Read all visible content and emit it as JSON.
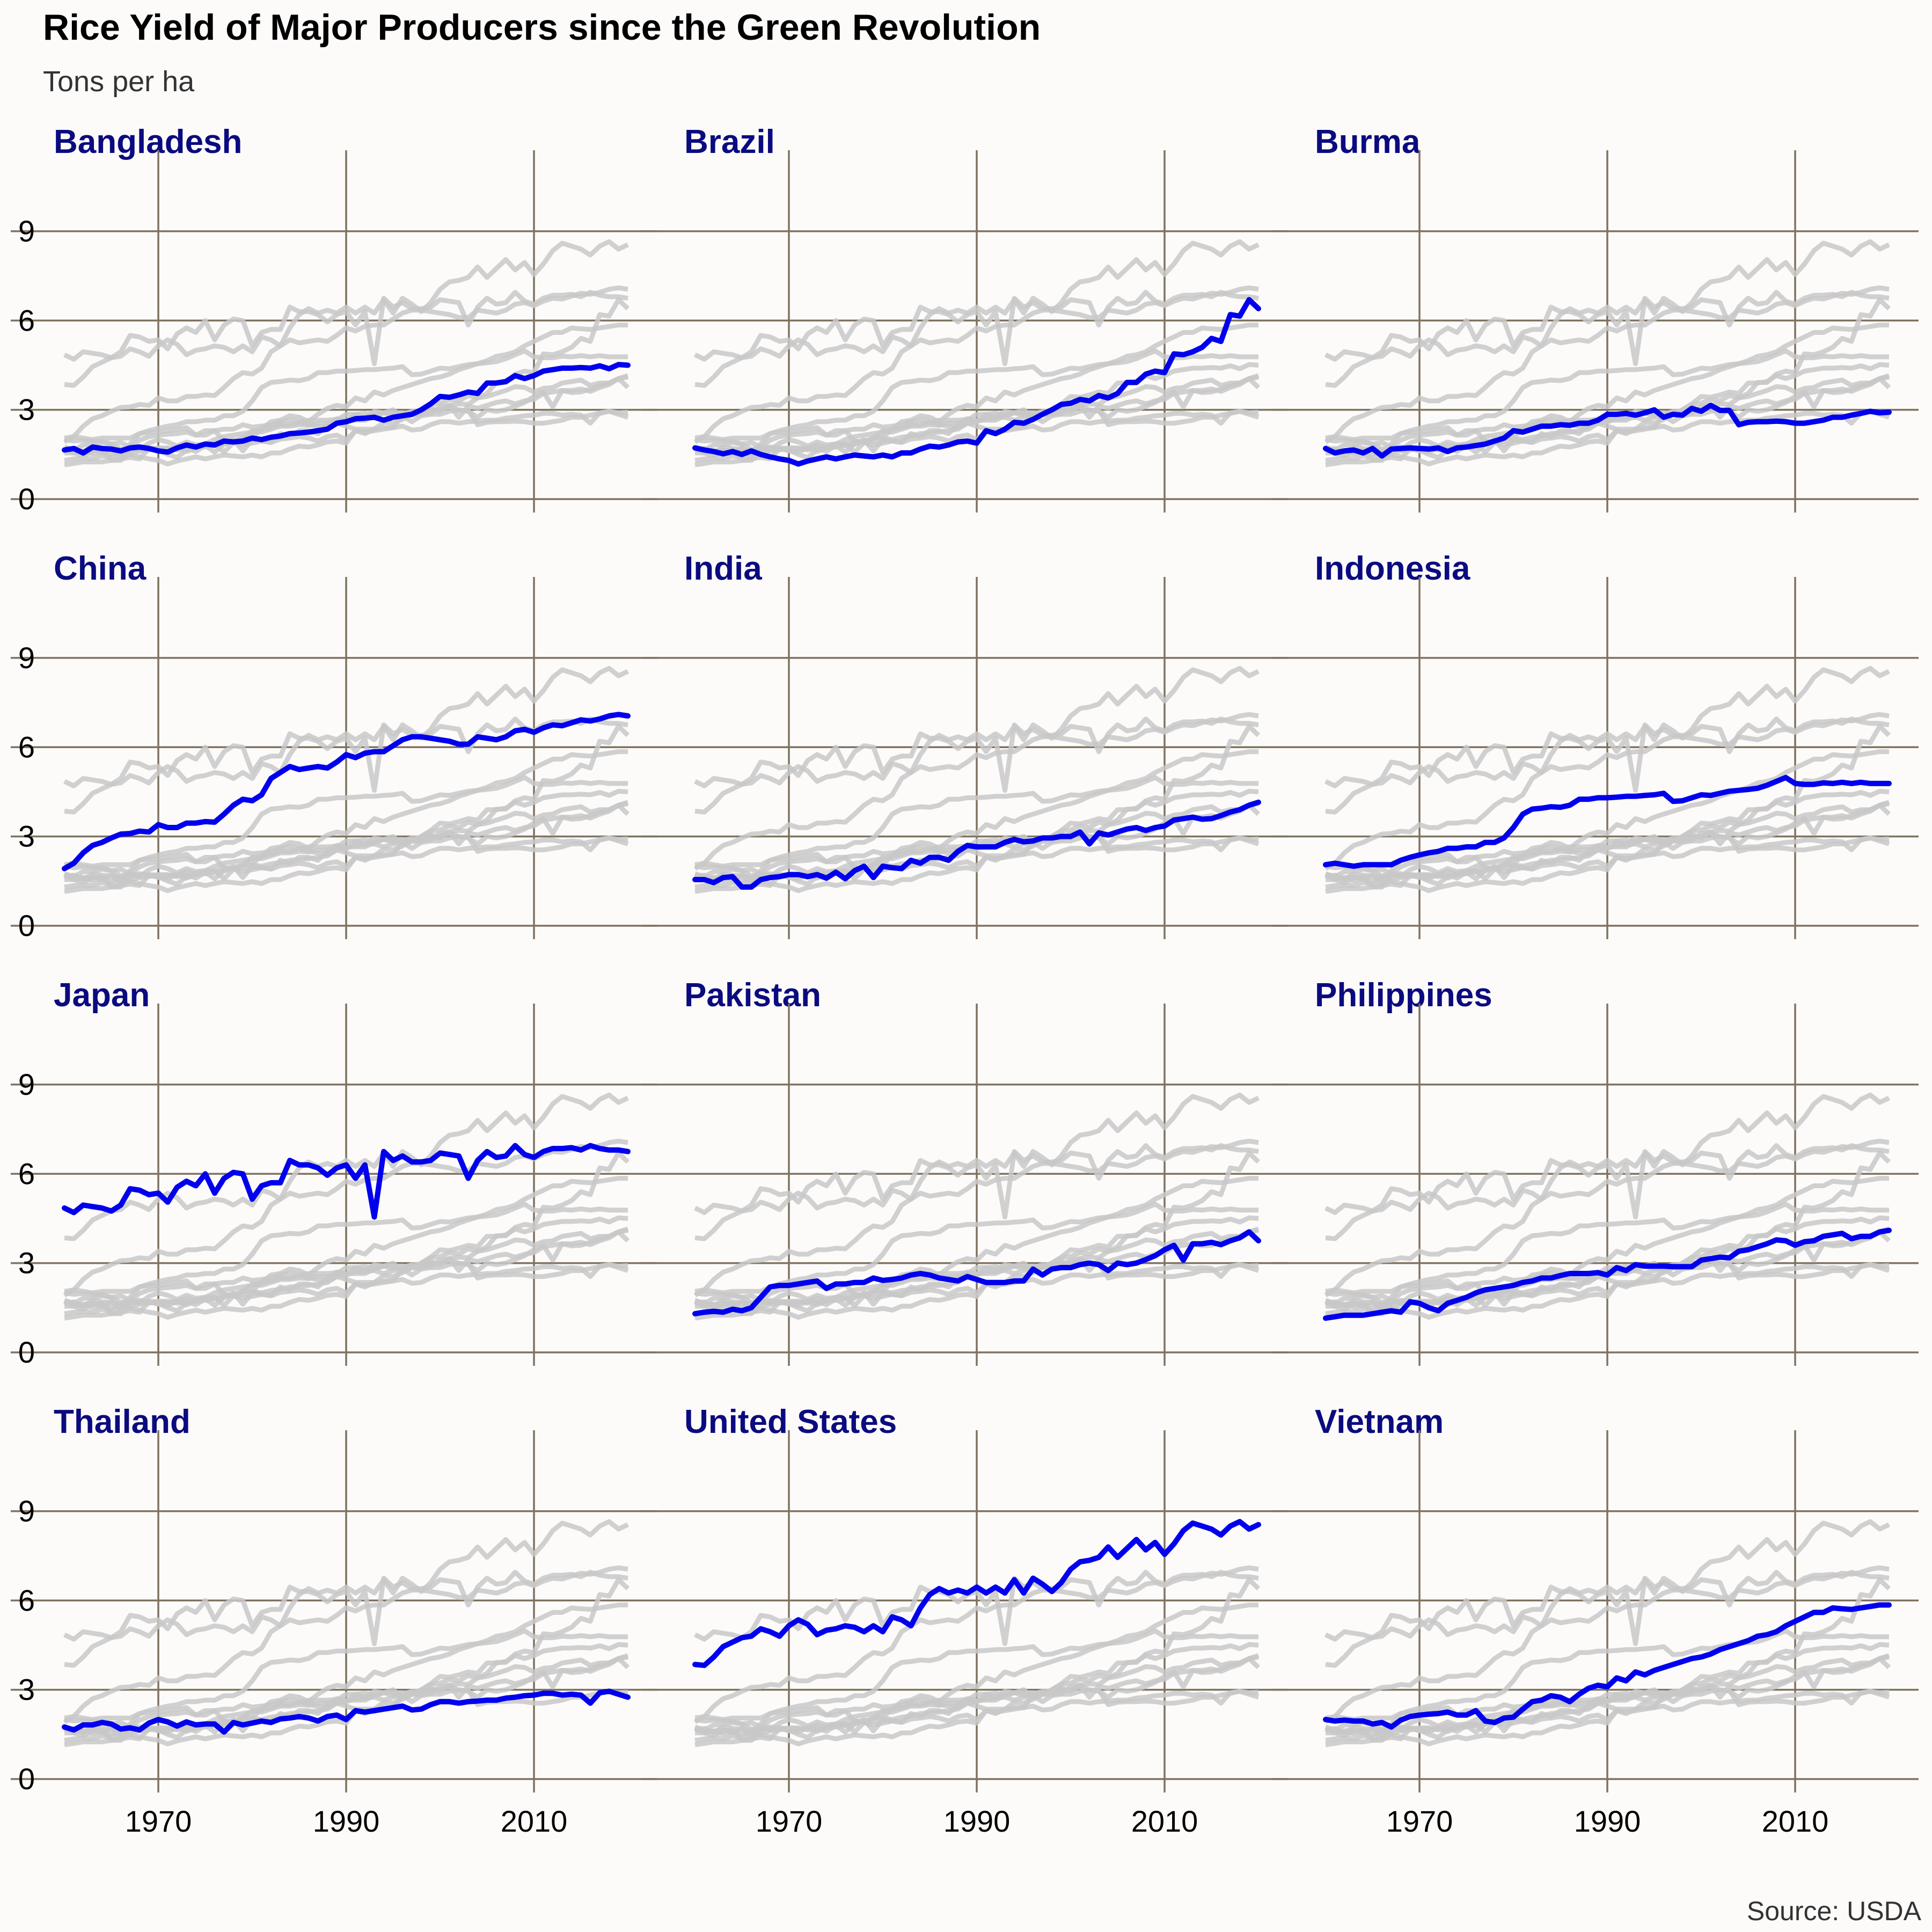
{
  "title": "Rice Yield of Major Producers since the Green Revolution",
  "subtitle": "Tons per ha",
  "caption": "Source: USDA",
  "colors": {
    "highlight": "#0000ee",
    "background_lines": "#c8c8c8",
    "grid": "#7f7360",
    "panel_title": "#0b0b80",
    "background": "#fdfbfa"
  },
  "chart_data": {
    "type": "line",
    "layout": "small multiples, 4 rows x 3 columns",
    "xlim": [
      1960,
      2020
    ],
    "ylim": [
      0,
      11
    ],
    "x_ticks": [
      1970,
      1990,
      2010
    ],
    "y_ticks": [
      0,
      3,
      6,
      9
    ],
    "x_tick_labels": [
      "1970",
      "1990",
      "2010"
    ],
    "y_tick_labels": [
      "0",
      "3",
      "6",
      "9"
    ],
    "grid": true,
    "x": [
      1960,
      1961,
      1962,
      1963,
      1964,
      1965,
      1966,
      1967,
      1968,
      1969,
      1970,
      1971,
      1972,
      1973,
      1974,
      1975,
      1976,
      1977,
      1978,
      1979,
      1980,
      1981,
      1982,
      1983,
      1984,
      1985,
      1986,
      1987,
      1988,
      1989,
      1990,
      1991,
      1992,
      1993,
      1994,
      1995,
      1996,
      1997,
      1998,
      1999,
      2000,
      2001,
      2002,
      2003,
      2004,
      2005,
      2006,
      2007,
      2008,
      2009,
      2010,
      2011,
      2012,
      2013,
      2014,
      2015,
      2016,
      2017,
      2018,
      2019,
      2020
    ],
    "background_series_note": "Every panel repeats all countries' yield series in grey behind the highlighted country (blue).",
    "series": [
      {
        "name": "Bangladesh",
        "values": [
          1.65,
          1.7,
          1.55,
          1.75,
          1.7,
          1.68,
          1.62,
          1.72,
          1.75,
          1.7,
          1.62,
          1.58,
          1.72,
          1.82,
          1.75,
          1.85,
          1.82,
          1.95,
          1.92,
          1.95,
          2.05,
          2.0,
          2.08,
          2.12,
          2.2,
          2.22,
          2.25,
          2.3,
          2.35,
          2.55,
          2.6,
          2.7,
          2.72,
          2.75,
          2.65,
          2.75,
          2.8,
          2.85,
          3.0,
          3.2,
          3.45,
          3.42,
          3.5,
          3.6,
          3.55,
          3.9,
          3.9,
          3.95,
          4.15,
          4.05,
          4.15,
          4.3,
          4.35,
          4.4,
          4.4,
          4.42,
          4.4,
          4.48,
          4.38,
          4.52,
          4.5
        ]
      },
      {
        "name": "Brazil",
        "values": [
          1.72,
          1.65,
          1.6,
          1.52,
          1.6,
          1.5,
          1.62,
          1.5,
          1.42,
          1.35,
          1.3,
          1.18,
          1.28,
          1.35,
          1.42,
          1.35,
          1.42,
          1.48,
          1.45,
          1.42,
          1.48,
          1.42,
          1.55,
          1.55,
          1.68,
          1.78,
          1.75,
          1.82,
          1.92,
          1.95,
          1.88,
          2.3,
          2.2,
          2.35,
          2.58,
          2.55,
          2.68,
          2.85,
          3.0,
          3.18,
          3.22,
          3.35,
          3.3,
          3.48,
          3.4,
          3.55,
          3.92,
          3.92,
          4.2,
          4.3,
          4.25,
          4.88,
          4.85,
          4.95,
          5.1,
          5.4,
          5.3,
          6.2,
          6.15,
          6.7,
          6.4
        ]
      },
      {
        "name": "Burma",
        "values": [
          1.7,
          1.55,
          1.62,
          1.65,
          1.55,
          1.7,
          1.45,
          1.68,
          1.7,
          1.72,
          1.7,
          1.68,
          1.72,
          1.6,
          1.72,
          1.75,
          1.8,
          1.85,
          1.95,
          2.05,
          2.3,
          2.25,
          2.35,
          2.45,
          2.45,
          2.5,
          2.48,
          2.55,
          2.55,
          2.65,
          2.85,
          2.85,
          2.88,
          2.82,
          2.9,
          3.0,
          2.75,
          2.85,
          2.82,
          3.05,
          2.95,
          3.15,
          2.98,
          2.98,
          2.5,
          2.58,
          2.6,
          2.6,
          2.62,
          2.6,
          2.55,
          2.55,
          2.6,
          2.65,
          2.75,
          2.75,
          2.82,
          2.88,
          2.95,
          2.9,
          2.92
        ]
      },
      {
        "name": "China",
        "values": [
          1.92,
          2.1,
          2.45,
          2.7,
          2.8,
          2.95,
          3.08,
          3.1,
          3.18,
          3.15,
          3.4,
          3.3,
          3.3,
          3.45,
          3.45,
          3.5,
          3.48,
          3.75,
          4.05,
          4.25,
          4.2,
          4.4,
          4.95,
          5.15,
          5.35,
          5.25,
          5.3,
          5.35,
          5.3,
          5.5,
          5.75,
          5.65,
          5.8,
          5.85,
          5.85,
          6.05,
          6.25,
          6.35,
          6.35,
          6.3,
          6.25,
          6.2,
          6.1,
          6.1,
          6.35,
          6.3,
          6.25,
          6.35,
          6.55,
          6.6,
          6.5,
          6.65,
          6.75,
          6.72,
          6.82,
          6.92,
          6.88,
          6.95,
          7.05,
          7.1,
          7.05
        ]
      },
      {
        "name": "India",
        "values": [
          1.55,
          1.55,
          1.45,
          1.62,
          1.65,
          1.3,
          1.3,
          1.55,
          1.62,
          1.65,
          1.72,
          1.72,
          1.65,
          1.72,
          1.6,
          1.8,
          1.58,
          1.85,
          2.0,
          1.62,
          2.0,
          1.95,
          1.92,
          2.2,
          2.1,
          2.3,
          2.3,
          2.2,
          2.5,
          2.7,
          2.65,
          2.65,
          2.65,
          2.8,
          2.9,
          2.82,
          2.85,
          2.95,
          2.95,
          3.0,
          3.0,
          3.15,
          2.75,
          3.12,
          3.05,
          3.15,
          3.25,
          3.3,
          3.2,
          3.3,
          3.35,
          3.55,
          3.6,
          3.65,
          3.58,
          3.6,
          3.7,
          3.82,
          3.9,
          4.05,
          4.15
        ]
      },
      {
        "name": "Indonesia",
        "values": [
          2.05,
          2.1,
          2.05,
          2.0,
          2.05,
          2.05,
          2.05,
          2.05,
          2.2,
          2.3,
          2.38,
          2.45,
          2.5,
          2.6,
          2.6,
          2.65,
          2.65,
          2.8,
          2.8,
          2.95,
          3.3,
          3.75,
          3.92,
          3.95,
          4.0,
          3.98,
          4.05,
          4.25,
          4.25,
          4.3,
          4.3,
          4.32,
          4.35,
          4.35,
          4.38,
          4.4,
          4.45,
          4.18,
          4.2,
          4.3,
          4.4,
          4.38,
          4.45,
          4.52,
          4.55,
          4.58,
          4.62,
          4.72,
          4.85,
          4.98,
          4.78,
          4.75,
          4.75,
          4.8,
          4.78,
          4.82,
          4.78,
          4.82,
          4.78,
          4.78,
          4.78
        ]
      },
      {
        "name": "Japan",
        "values": [
          4.85,
          4.7,
          4.95,
          4.9,
          4.85,
          4.75,
          4.95,
          5.5,
          5.45,
          5.3,
          5.35,
          5.05,
          5.55,
          5.75,
          5.6,
          6.0,
          5.35,
          5.85,
          6.05,
          6.0,
          5.15,
          5.6,
          5.7,
          5.7,
          6.45,
          6.3,
          6.3,
          6.2,
          5.95,
          6.2,
          6.3,
          5.85,
          6.3,
          4.55,
          6.75,
          6.45,
          6.6,
          6.4,
          6.4,
          6.45,
          6.7,
          6.65,
          6.6,
          5.85,
          6.45,
          6.75,
          6.55,
          6.6,
          6.95,
          6.65,
          6.55,
          6.75,
          6.85,
          6.85,
          6.88,
          6.8,
          6.95,
          6.85,
          6.8,
          6.8,
          6.75
        ]
      },
      {
        "name": "Pakistan",
        "values": [
          1.3,
          1.35,
          1.38,
          1.35,
          1.45,
          1.4,
          1.5,
          1.85,
          2.2,
          2.25,
          2.25,
          2.3,
          2.35,
          2.4,
          2.15,
          2.3,
          2.3,
          2.35,
          2.35,
          2.5,
          2.42,
          2.45,
          2.5,
          2.6,
          2.65,
          2.6,
          2.5,
          2.45,
          2.4,
          2.55,
          2.45,
          2.35,
          2.35,
          2.35,
          2.4,
          2.4,
          2.8,
          2.6,
          2.8,
          2.85,
          2.85,
          2.95,
          3.0,
          2.95,
          2.75,
          3.0,
          2.95,
          3.0,
          3.12,
          3.25,
          3.45,
          3.6,
          3.1,
          3.65,
          3.65,
          3.7,
          3.62,
          3.75,
          3.85,
          4.05,
          3.75
        ]
      },
      {
        "name": "Philippines",
        "values": [
          1.15,
          1.2,
          1.25,
          1.25,
          1.25,
          1.3,
          1.35,
          1.4,
          1.35,
          1.7,
          1.65,
          1.5,
          1.4,
          1.65,
          1.75,
          1.85,
          2.0,
          2.1,
          2.15,
          2.2,
          2.25,
          2.35,
          2.4,
          2.5,
          2.5,
          2.58,
          2.65,
          2.65,
          2.65,
          2.68,
          2.6,
          2.85,
          2.75,
          2.95,
          2.9,
          2.9,
          2.9,
          2.88,
          2.88,
          2.88,
          3.1,
          3.15,
          3.2,
          3.18,
          3.4,
          3.45,
          3.55,
          3.65,
          3.78,
          3.75,
          3.6,
          3.72,
          3.75,
          3.9,
          3.95,
          4.0,
          3.82,
          3.9,
          3.9,
          4.05,
          4.1
        ]
      },
      {
        "name": "Thailand",
        "values": [
          1.75,
          1.65,
          1.82,
          1.82,
          1.9,
          1.85,
          1.68,
          1.72,
          1.65,
          1.88,
          2.0,
          1.92,
          1.78,
          1.92,
          1.82,
          1.85,
          1.85,
          1.58,
          1.9,
          1.82,
          1.88,
          1.95,
          1.9,
          2.02,
          2.05,
          2.1,
          2.05,
          1.95,
          2.1,
          2.15,
          2.0,
          2.3,
          2.25,
          2.3,
          2.35,
          2.4,
          2.45,
          2.32,
          2.35,
          2.5,
          2.6,
          2.6,
          2.55,
          2.6,
          2.62,
          2.65,
          2.65,
          2.72,
          2.75,
          2.8,
          2.82,
          2.88,
          2.88,
          2.82,
          2.85,
          2.82,
          2.55,
          2.9,
          2.95,
          2.85,
          2.75
        ]
      },
      {
        "name": "United States",
        "values": [
          3.85,
          3.82,
          4.1,
          4.45,
          4.6,
          4.75,
          4.8,
          5.05,
          4.95,
          4.8,
          5.15,
          5.35,
          5.2,
          4.85,
          5.0,
          5.05,
          5.15,
          5.1,
          4.95,
          5.15,
          4.95,
          5.45,
          5.35,
          5.15,
          5.75,
          6.2,
          6.4,
          6.25,
          6.35,
          6.25,
          6.45,
          6.25,
          6.45,
          6.25,
          6.7,
          6.25,
          6.75,
          6.55,
          6.3,
          6.6,
          7.05,
          7.3,
          7.35,
          7.45,
          7.8,
          7.45,
          7.75,
          8.05,
          7.7,
          7.95,
          7.55,
          7.9,
          8.35,
          8.6,
          8.5,
          8.4,
          8.2,
          8.5,
          8.65,
          8.4,
          8.55
        ]
      },
      {
        "name": "Vietnam",
        "values": [
          2.0,
          1.95,
          1.98,
          1.95,
          1.95,
          1.85,
          1.9,
          1.75,
          1.98,
          2.1,
          2.15,
          2.18,
          2.2,
          2.25,
          2.15,
          2.15,
          2.3,
          1.95,
          1.9,
          2.05,
          2.08,
          2.35,
          2.6,
          2.65,
          2.8,
          2.75,
          2.6,
          2.85,
          3.05,
          3.15,
          3.1,
          3.4,
          3.3,
          3.6,
          3.5,
          3.65,
          3.75,
          3.85,
          3.95,
          4.05,
          4.1,
          4.2,
          4.35,
          4.45,
          4.55,
          4.65,
          4.8,
          4.85,
          4.95,
          5.15,
          5.3,
          5.45,
          5.6,
          5.6,
          5.75,
          5.72,
          5.7,
          5.75,
          5.8,
          5.85,
          5.85
        ]
      }
    ]
  }
}
